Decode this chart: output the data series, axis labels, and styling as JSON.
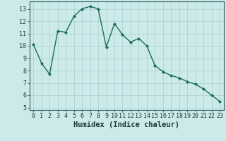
{
  "x": [
    0,
    1,
    2,
    3,
    4,
    5,
    6,
    7,
    8,
    9,
    10,
    11,
    12,
    13,
    14,
    15,
    16,
    17,
    18,
    19,
    20,
    21,
    22,
    23
  ],
  "y": [
    10.1,
    8.6,
    7.7,
    11.2,
    11.1,
    12.4,
    13.0,
    13.2,
    13.0,
    9.9,
    11.8,
    10.9,
    10.3,
    10.6,
    10.0,
    8.4,
    7.9,
    7.6,
    7.4,
    7.1,
    6.9,
    6.5,
    6.0,
    5.5
  ],
  "xlabel": "Humidex (Indice chaleur)",
  "ylim": [
    4.8,
    13.6
  ],
  "xlim": [
    -0.5,
    23.5
  ],
  "yticks": [
    5,
    6,
    7,
    8,
    9,
    10,
    11,
    12,
    13
  ],
  "xticks": [
    0,
    1,
    2,
    3,
    4,
    5,
    6,
    7,
    8,
    9,
    10,
    11,
    12,
    13,
    14,
    15,
    16,
    17,
    18,
    19,
    20,
    21,
    22,
    23
  ],
  "line_color": "#1a6b5a",
  "marker": "D",
  "marker_size": 2.0,
  "bg_color": "#cceaea",
  "grid_color": "#aacfcf",
  "line_width": 1.0,
  "tick_fontsize": 6.0,
  "xlabel_fontsize": 7.5,
  "grid_major_color": "#c0d8d8",
  "grid_minor_color": "#d0e5e5"
}
